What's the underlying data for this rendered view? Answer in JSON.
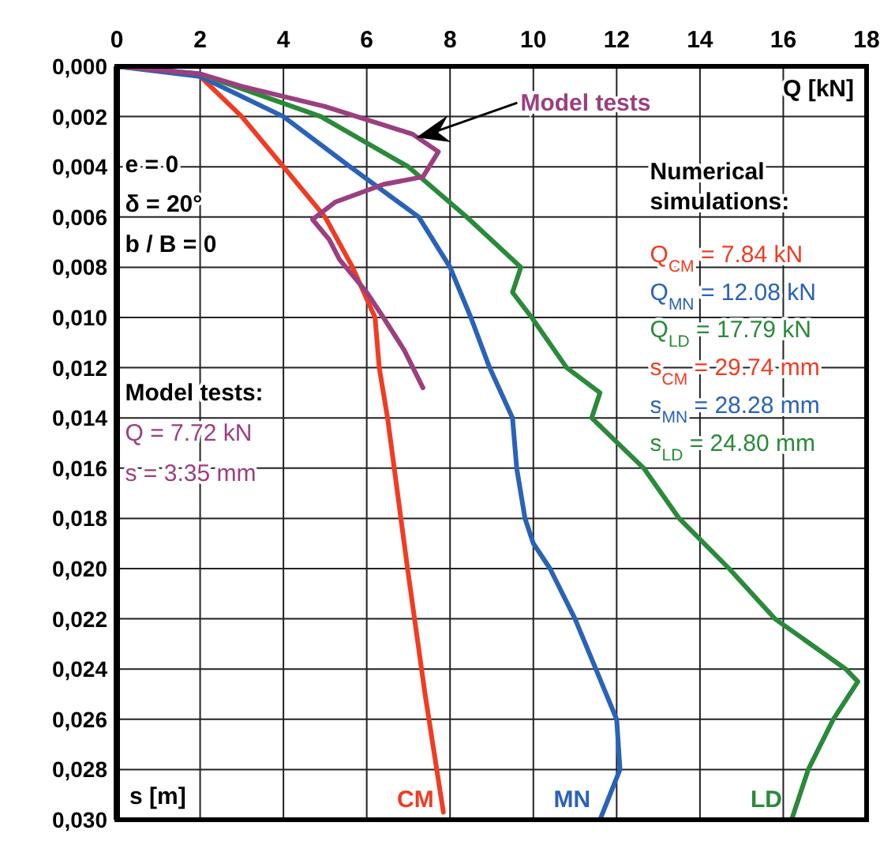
{
  "chart_data": {
    "type": "line",
    "xlabel": "Q [kN]",
    "ylabel": "s [m]",
    "xlim": [
      0,
      18
    ],
    "xticks": [
      0,
      2,
      4,
      6,
      8,
      10,
      12,
      14,
      16,
      18
    ],
    "ylim": [
      0.03,
      0
    ],
    "yticks": [
      {
        "value": 0,
        "label": "0,000"
      },
      {
        "value": 0.002,
        "label": "0,002"
      },
      {
        "value": 0.004,
        "label": "0,004"
      },
      {
        "value": 0.006,
        "label": "0,006"
      },
      {
        "value": 0.008,
        "label": "0,008"
      },
      {
        "value": 0.01,
        "label": "0,010"
      },
      {
        "value": 0.012,
        "label": "0,012"
      },
      {
        "value": 0.014,
        "label": "0,014"
      },
      {
        "value": 0.016,
        "label": "0,016"
      },
      {
        "value": 0.018,
        "label": "0,018"
      },
      {
        "value": 0.02,
        "label": "0,020"
      },
      {
        "value": 0.022,
        "label": "0,022"
      },
      {
        "value": 0.024,
        "label": "0,024"
      },
      {
        "value": 0.026,
        "label": "0,026"
      },
      {
        "value": 0.028,
        "label": "0,028"
      },
      {
        "value": 0.03,
        "label": "0,030"
      }
    ],
    "grid": true,
    "legend": false,
    "marker": "none",
    "line_style": "solid",
    "series": [
      {
        "name": "CM",
        "color": "#f03c23",
        "x": [
          0,
          1,
          2,
          3.0,
          4.0,
          5.0,
          5.66,
          6.2,
          6.3,
          6.5,
          6.98,
          7.4,
          7.84
        ],
        "values": [
          0,
          0.0001,
          0.0004,
          0.002,
          0.004,
          0.006,
          0.008,
          0.01,
          0.012,
          0.014,
          0.02,
          0.025,
          0.0297
        ]
      },
      {
        "name": "MN",
        "color": "#2a62b8",
        "x": [
          0,
          2,
          4.0,
          5.6,
          7.25,
          8.0,
          8.5,
          8.95,
          9.5,
          9.6,
          9.8,
          10.0,
          10.4,
          11.0,
          11.5,
          12.0,
          12.08,
          11.6
        ],
        "values": [
          0,
          0.0004,
          0.002,
          0.004,
          0.006,
          0.008,
          0.01,
          0.012,
          0.014,
          0.016,
          0.018,
          0.019,
          0.02,
          0.022,
          0.024,
          0.026,
          0.028,
          0.03
        ]
      },
      {
        "name": "LD",
        "color": "#2a8a3a",
        "x": [
          0,
          2,
          4.9,
          7.0,
          8.4,
          9.7,
          9.5,
          9.96,
          10.8,
          11.6,
          11.5,
          11.4,
          12.65,
          13.5,
          14.7,
          15.8,
          17.5,
          17.79,
          17.2,
          16.6,
          16.2
        ],
        "values": [
          0,
          0.0003,
          0.002,
          0.004,
          0.006,
          0.008,
          0.009,
          0.01,
          0.012,
          0.013,
          0.0135,
          0.014,
          0.016,
          0.018,
          0.02,
          0.022,
          0.024,
          0.0245,
          0.026,
          0.028,
          0.03
        ]
      },
      {
        "name": "Model tests",
        "color": "#9b3f7f",
        "x": [
          0,
          2,
          3.0,
          5.0,
          7.1,
          7.72,
          7.35,
          6.4,
          5.25,
          4.7,
          5.1,
          5.35,
          6.0,
          6.4,
          6.9,
          7.35
        ],
        "values": [
          0,
          0.0003,
          0.0008,
          0.0016,
          0.0027,
          0.0034,
          0.0044,
          0.0047,
          0.0054,
          0.0061,
          0.0069,
          0.0077,
          0.009,
          0.01,
          0.0113,
          0.0128
        ]
      }
    ],
    "annotations": [
      "e = 0",
      "δ = 20°",
      "b / B = 0",
      "Model tests:",
      "Q = 7.72 kN",
      "s = 3.35 mm",
      "Numerical simulations:",
      "Q$_{CM}$ = 7.84 kN",
      "Q$_{MN}$ = 12.08 kN",
      "Q$_{LD}$ = 17.79 kN",
      "s$_{CM}$ = 29.74 mm",
      "s$_{MN}$ = 28.28 mm",
      "s$_{LD}$ = 24.80 mm"
    ]
  }
}
